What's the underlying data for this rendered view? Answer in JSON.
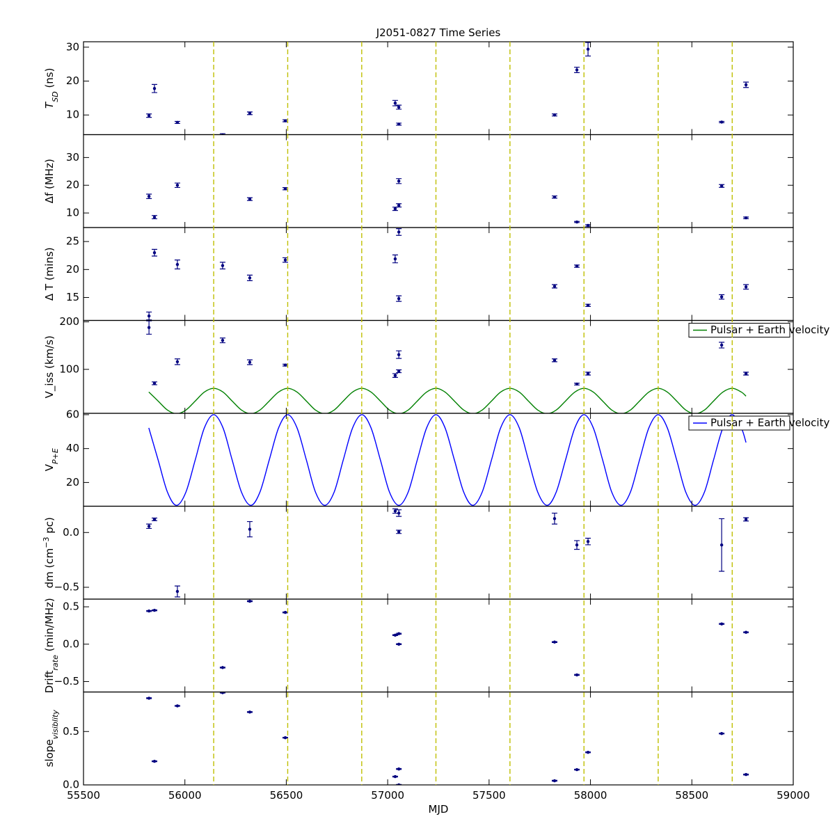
{
  "chart_data": [
    {
      "type": "errorbar",
      "title": "J2051-0827 Time Series",
      "ylabel": [
        {
          "text": "T",
          "italic": true
        },
        {
          "text": "SD",
          "sub": true,
          "italic": true
        },
        {
          "text": " (ns)"
        }
      ],
      "xlim": [
        55500,
        59000
      ],
      "ylim": [
        4.2,
        31.6
      ],
      "yticks": [
        10,
        20,
        30
      ],
      "vlines": [
        56142,
        56507,
        56872,
        57238,
        57603,
        57968,
        58334,
        58699
      ],
      "vline_color": "#bfbf00",
      "series": [
        {
          "type": "errorbar",
          "color": "#000080",
          "x": [
            55823,
            55850,
            55963,
            56186,
            56320,
            56495,
            57037,
            57055,
            57055,
            57823,
            57933,
            57988,
            58647,
            58767
          ],
          "values": [
            9.8,
            17.8,
            7.8,
            4.0,
            10.5,
            8.3,
            13.5,
            12.3,
            7.3,
            10.0,
            23.3,
            29.4,
            7.9,
            18.9
          ],
          "errors": [
            0.5,
            1.2,
            0.3,
            0.5,
            0.4,
            0.3,
            0.8,
            0.6,
            0.3,
            0.3,
            0.8,
            2.0,
            0.2,
            0.8
          ]
        }
      ]
    },
    {
      "type": "errorbar",
      "ylabel": [
        {
          "text": "Δf (MHz)"
        }
      ],
      "xlim": [
        55500,
        59000
      ],
      "ylim": [
        4.75,
        38.25
      ],
      "yticks": [
        10,
        20,
        30
      ],
      "series": [
        {
          "type": "errorbar",
          "color": "#000080",
          "x": [
            55823,
            55850,
            55963,
            56320,
            56495,
            57037,
            57055,
            57055,
            57823,
            57933,
            57988,
            58647,
            58767
          ],
          "values": [
            16.0,
            8.5,
            20.0,
            15.0,
            18.75,
            11.5,
            12.75,
            21.5,
            15.75,
            6.75,
            5.5,
            19.75,
            8.25
          ],
          "errors": [
            0.8,
            0.6,
            0.8,
            0.5,
            0.4,
            0.6,
            0.6,
            0.9,
            0.4,
            0.2,
            0.3,
            0.5,
            0.3
          ]
        }
      ]
    },
    {
      "type": "errorbar",
      "ylabel": [
        {
          "text": "Δ T (mins)"
        }
      ],
      "xlim": [
        55500,
        59000
      ],
      "ylim": [
        10.9,
        27.5
      ],
      "yticks": [
        15,
        20,
        25
      ],
      "series": [
        {
          "type": "errorbar",
          "color": "#000080",
          "x": [
            55823,
            55850,
            55963,
            56186,
            56320,
            56495,
            57037,
            57055,
            57055,
            57823,
            57933,
            57988,
            58647,
            58767
          ],
          "values": [
            11.7,
            23.0,
            20.9,
            20.7,
            18.5,
            21.7,
            21.9,
            14.8,
            26.7,
            17.0,
            20.6,
            13.6,
            15.1,
            16.9
          ],
          "errors": [
            0.7,
            0.6,
            0.8,
            0.6,
            0.5,
            0.4,
            0.7,
            0.5,
            0.6,
            0.3,
            0.2,
            0.2,
            0.4,
            0.4
          ]
        }
      ]
    },
    {
      "type": "combo",
      "ylabel": [
        {
          "text": "V_iss (km/s)"
        }
      ],
      "xlim": [
        55500,
        59000
      ],
      "ylim": [
        7.4,
        203
      ],
      "yticks": [
        100,
        200
      ],
      "legend": "upper right",
      "series": [
        {
          "type": "errorbar",
          "color": "#000080",
          "x": [
            55823,
            55850,
            55963,
            56186,
            56320,
            56495,
            57037,
            57055,
            57055,
            57823,
            57933,
            57988,
            58647,
            58767
          ],
          "values": [
            188,
            70.6,
            116,
            161,
            115,
            109,
            87,
            96,
            131,
            119,
            69,
            91,
            151,
            91
          ],
          "errors": [
            14,
            3,
            6,
            5,
            5,
            2,
            4,
            3,
            8,
            3,
            2,
            3,
            6,
            3
          ]
        },
        {
          "type": "line",
          "name": "Pulsar + Earth velocity",
          "color": "#008000",
          "x": [
            55822,
            55868,
            55914,
            55959,
            56005,
            56051,
            56096,
            56142,
            56188,
            56233,
            56279,
            56325,
            56370,
            56416,
            56462,
            56507,
            56553,
            56599,
            56644,
            56690,
            56736,
            56781,
            56827,
            56873,
            56918,
            56964,
            57009,
            57055,
            57101,
            57146,
            57192,
            57238,
            57283,
            57329,
            57375,
            57420,
            57466,
            57512,
            57557,
            57603,
            57649,
            57694,
            57740,
            57786,
            57831,
            57877,
            57923,
            57968,
            58014,
            58060,
            58105,
            58151,
            58197,
            58242,
            58288,
            58334,
            58379,
            58425,
            58470,
            58516,
            58562,
            58607,
            58653,
            58699,
            58744,
            58767
          ],
          "values": [
            52.2,
            33.3,
            14.3,
            6.5,
            14.3,
            33.3,
            52.2,
            60,
            52.2,
            33.3,
            14.3,
            6.5,
            14.3,
            33.3,
            52.2,
            60,
            52.2,
            33.3,
            14.3,
            6.5,
            14.3,
            33.3,
            52.2,
            60,
            52.2,
            33.3,
            14.3,
            6.5,
            14.3,
            33.3,
            52.2,
            60,
            52.2,
            33.3,
            14.3,
            6.5,
            14.3,
            33.3,
            52.2,
            60,
            52.2,
            33.3,
            14.3,
            6.5,
            14.3,
            33.3,
            52.2,
            60,
            52.2,
            33.3,
            14.3,
            6.5,
            14.3,
            33.3,
            52.2,
            60,
            52.2,
            33.3,
            14.3,
            6.5,
            14.3,
            33.3,
            52.2,
            60,
            52.2,
            43.6
          ]
        }
      ]
    },
    {
      "type": "line",
      "ylabel": [
        {
          "text": "V"
        },
        {
          "text": "P+E",
          "sub": true,
          "italic": true
        }
      ],
      "xlim": [
        55500,
        59000
      ],
      "ylim": [
        6,
        60.8
      ],
      "yticks": [
        20,
        40,
        60
      ],
      "legend": "upper right",
      "series": [
        {
          "type": "line",
          "name": "Pulsar + Earth velocity",
          "color": "#0000ff",
          "x": [
            55822,
            55868,
            55914,
            55959,
            56005,
            56051,
            56096,
            56142,
            56188,
            56233,
            56279,
            56325,
            56370,
            56416,
            56462,
            56507,
            56553,
            56599,
            56644,
            56690,
            56736,
            56781,
            56827,
            56873,
            56918,
            56964,
            57009,
            57055,
            57101,
            57146,
            57192,
            57238,
            57283,
            57329,
            57375,
            57420,
            57466,
            57512,
            57557,
            57603,
            57649,
            57694,
            57740,
            57786,
            57831,
            57877,
            57923,
            57968,
            58014,
            58060,
            58105,
            58151,
            58197,
            58242,
            58288,
            58334,
            58379,
            58425,
            58470,
            58516,
            58562,
            58607,
            58653,
            58699,
            58744,
            58767
          ],
          "values": [
            52.2,
            33.3,
            14.3,
            6.5,
            14.3,
            33.3,
            52.2,
            60,
            52.2,
            33.3,
            14.3,
            6.5,
            14.3,
            33.3,
            52.2,
            60,
            52.2,
            33.3,
            14.3,
            6.5,
            14.3,
            33.3,
            52.2,
            60,
            52.2,
            33.3,
            14.3,
            6.5,
            14.3,
            33.3,
            52.2,
            60,
            52.2,
            33.3,
            14.3,
            6.5,
            14.3,
            33.3,
            52.2,
            60,
            52.2,
            33.3,
            14.3,
            6.5,
            14.3,
            33.3,
            52.2,
            60,
            52.2,
            33.3,
            14.3,
            6.5,
            14.3,
            33.3,
            52.2,
            60,
            52.2,
            33.3,
            14.3,
            6.5,
            14.3,
            33.3,
            52.2,
            60,
            52.2,
            43.6
          ]
        }
      ]
    },
    {
      "type": "errorbar",
      "ylabel": [
        {
          "text": "dm (cm"
        },
        {
          "text": "−3",
          "sup": true
        },
        {
          "text": " pc)"
        }
      ],
      "xlim": [
        55500,
        59000
      ],
      "ylim": [
        -0.608,
        0.24
      ],
      "yticks": [
        {
          "value": -0.5,
          "label": "−0.5"
        },
        {
          "value": 0,
          "label": "0.0"
        }
      ],
      "series": [
        {
          "type": "errorbar",
          "color": "#000080",
          "x": [
            55823,
            55850,
            55963,
            56320,
            57037,
            57055,
            57055,
            57823,
            57933,
            57988,
            58647,
            58767
          ],
          "values": [
            0.057,
            0.12,
            -0.538,
            0.03,
            0.196,
            0.177,
            0.006,
            0.127,
            -0.114,
            -0.082,
            -0.114,
            0.12
          ],
          "errors": [
            0.02,
            0.012,
            0.05,
            0.07,
            0.02,
            0.03,
            0.015,
            0.05,
            0.04,
            0.03,
            0.24,
            0.015
          ]
        }
      ]
    },
    {
      "type": "errorbar",
      "ylabel": [
        {
          "text": "Drift"
        },
        {
          "text": "rate",
          "sub": true,
          "italic": true
        },
        {
          "text": " (min/MHz)"
        }
      ],
      "xlim": [
        55500,
        59000
      ],
      "ylim": [
        -0.64,
        0.603
      ],
      "yticks": [
        {
          "value": -0.5,
          "label": "−0.5"
        },
        {
          "value": 0,
          "label": "0.0"
        },
        0.5
      ],
      "series": [
        {
          "type": "errorbar",
          "color": "#000080",
          "x": [
            55823,
            55850,
            56186,
            56320,
            56495,
            57037,
            57055,
            57055,
            57823,
            57933,
            58647,
            58767
          ],
          "values": [
            0.444,
            0.453,
            -0.313,
            0.575,
            0.425,
            0.121,
            0.14,
            0.0,
            0.028,
            -0.411,
            0.271,
            0.159
          ],
          "errors": [
            0.006,
            0.006,
            0.006,
            0.006,
            0.006,
            0.006,
            0.006,
            0.006,
            0.006,
            0.006,
            0.006,
            0.006
          ]
        }
      ]
    },
    {
      "type": "errorbar",
      "ylabel": [
        {
          "text": "slope"
        },
        {
          "text": "visiblity",
          "sub": true,
          "italic": true
        }
      ],
      "xlabel": "MJD",
      "xlim": [
        55500,
        59000
      ],
      "ylim": [
        0,
        0.87
      ],
      "xticks": [
        55500,
        56000,
        56500,
        57000,
        57500,
        58000,
        58500,
        59000
      ],
      "yticks": [
        {
          "value": 0,
          "label": "0.0"
        },
        0.5
      ],
      "series": [
        {
          "type": "errorbar",
          "color": "#000080",
          "x": [
            55823,
            55850,
            55963,
            56186,
            56320,
            56495,
            57037,
            57055,
            57055,
            57823,
            57933,
            57988,
            58647,
            58767
          ],
          "values": [
            0.812,
            0.221,
            0.74,
            0.864,
            0.682,
            0.442,
            0.078,
            0.149,
            0.0,
            0.039,
            0.143,
            0.305,
            0.481,
            0.097
          ],
          "errors": [
            0.004,
            0.004,
            0.004,
            0.004,
            0.004,
            0.004,
            0.004,
            0.004,
            0.004,
            0.004,
            0.004,
            0.004,
            0.004,
            0.004
          ]
        }
      ]
    }
  ]
}
